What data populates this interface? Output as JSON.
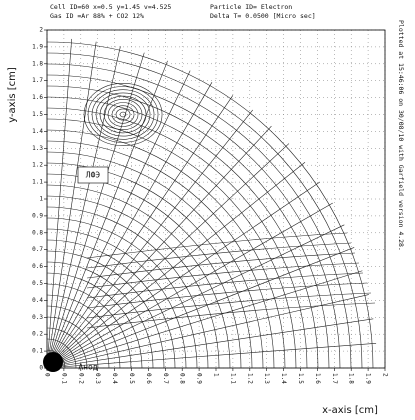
{
  "chart_data": {
    "type": "drift",
    "header": [
      "Cell ID=60 x=0.5 y=1.45 v=4.525",
      "Gas ID =Ar 88% + CO2 12%",
      "Particle ID= Electron",
      "Delta T=     0.0500 [Micro sec]"
    ],
    "side_note": "Plotted at 15:46:06 on 30/08/10 with Garfield version 4.28.",
    "x_label": "x-axis [cm]",
    "y_label": "y-axis [cm]",
    "annotations": [
      "ЛФЭ",
      "Анод"
    ],
    "xlim": [
      0,
      2
    ],
    "ylim": [
      0,
      2
    ],
    "xticks": [
      0,
      0.1,
      0.2,
      0.3,
      0.4,
      0.5,
      0.6,
      0.7,
      0.8,
      0.9,
      1,
      1.1,
      1.2,
      1.3,
      1.4,
      1.5,
      1.6,
      1.7,
      1.8,
      1.9,
      2
    ],
    "yticks": [
      0,
      0.1,
      0.2,
      0.3,
      0.4,
      0.5,
      0.6,
      0.7,
      0.8,
      0.9,
      1,
      1.1,
      1.2,
      1.3,
      1.4,
      1.5,
      1.6,
      1.7,
      1.8,
      1.9,
      2
    ],
    "grid": true
  }
}
